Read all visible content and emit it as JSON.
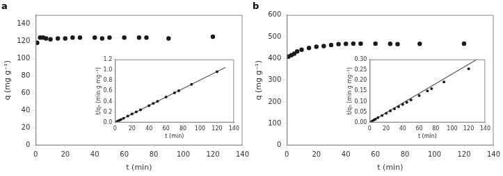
{
  "chart_data": [
    {
      "type": "scatter",
      "title": "a",
      "x": [
        1,
        3,
        5,
        7,
        10,
        15,
        20,
        25,
        30,
        40,
        45,
        50,
        60,
        70,
        75,
        90,
        120
      ],
      "values": [
        118,
        124,
        124,
        123,
        122,
        123,
        123,
        124,
        124,
        124,
        123,
        124,
        124,
        124,
        124,
        123,
        125
      ],
      "color": "#1a1a1a",
      "marker": "circle",
      "xlabel": "t (min)",
      "ylabel": "q (mg g⁻¹)",
      "xlim": [
        0,
        140
      ],
      "ylim": [
        0,
        150
      ],
      "xticks": [
        0,
        20,
        40,
        60,
        80,
        100,
        120,
        140
      ],
      "yticks": [
        0,
        20,
        40,
        60,
        80,
        100,
        120,
        140
      ],
      "grid": false
    },
    {
      "type": "scatter",
      "series": [
        {
          "type": "line",
          "color": "#555555",
          "line_style": "solid",
          "x": [
            0,
            130
          ],
          "values": [
            0,
            1.048
          ]
        },
        {
          "type": "scatter",
          "color": "#1a1a1a",
          "marker": "circle",
          "x": [
            1,
            3,
            5,
            7,
            10,
            15,
            20,
            25,
            30,
            40,
            45,
            50,
            60,
            70,
            75,
            90,
            120
          ],
          "values": [
            0.008,
            0.024,
            0.04,
            0.057,
            0.081,
            0.121,
            0.161,
            0.201,
            0.242,
            0.322,
            0.363,
            0.403,
            0.484,
            0.564,
            0.604,
            0.726,
            0.967
          ]
        }
      ],
      "xlabel": "t (min)",
      "ylabel": "t/qₙ (min g mg⁻¹)",
      "xlim": [
        0,
        140
      ],
      "ylim": [
        0,
        1.2
      ],
      "xticks": [
        0,
        20,
        40,
        60,
        80,
        100,
        120,
        140
      ],
      "yticks": [
        {
          "value": 0.0,
          "label": "0.0"
        },
        0.2,
        0.4,
        0.6,
        0.8,
        {
          "value": 1.0,
          "label": "1.0"
        },
        1.2
      ],
      "grid": false
    },
    {
      "type": "scatter",
      "title": "b",
      "x": [
        1,
        3,
        5,
        7,
        10,
        15,
        20,
        25,
        30,
        35,
        40,
        45,
        50,
        60,
        70,
        75,
        90,
        120
      ],
      "values": [
        408,
        415,
        422,
        432,
        440,
        448,
        454,
        457,
        462,
        466,
        467,
        468,
        468,
        468,
        467,
        466,
        467,
        468
      ],
      "color": "#1a1a1a",
      "marker": "circle",
      "xlabel": "t (min)",
      "ylabel": "q (mg g⁻¹)",
      "xlim": [
        0,
        140
      ],
      "ylim": [
        0,
        600
      ],
      "xticks": [
        0,
        20,
        40,
        60,
        80,
        100,
        120,
        140
      ],
      "yticks": [
        0,
        100,
        200,
        300,
        400,
        500,
        600
      ],
      "grid": false
    },
    {
      "type": "scatter",
      "series": [
        {
          "type": "line",
          "color": "#555555",
          "line_style": "solid",
          "x": [
            0,
            130
          ],
          "values": [
            0,
            0.3
          ]
        },
        {
          "type": "scatter",
          "color": "#1a1a1a",
          "marker": "circle",
          "x": [
            1,
            3,
            5,
            7,
            10,
            15,
            20,
            25,
            30,
            35,
            40,
            45,
            50,
            60,
            70,
            75,
            90,
            120
          ],
          "values": [
            0.002,
            0.007,
            0.012,
            0.016,
            0.023,
            0.033,
            0.044,
            0.055,
            0.065,
            0.075,
            0.086,
            0.096,
            0.107,
            0.128,
            0.15,
            0.161,
            0.193,
            0.256
          ]
        }
      ],
      "xlabel": "t (min)",
      "ylabel": "t/qₙ (min g mg⁻¹)",
      "xlim": [
        0,
        140
      ],
      "ylim": [
        0,
        0.3
      ],
      "xticks": [
        0,
        20,
        40,
        60,
        80,
        100,
        120,
        140
      ],
      "yticks": [
        {
          "value": 0,
          "label": "0.00"
        },
        0.05,
        {
          "value": 0.1,
          "label": "0.10"
        },
        0.15,
        {
          "value": 0.2,
          "label": "0.20"
        },
        0.25,
        {
          "value": 0.3,
          "label": "0.30"
        }
      ],
      "grid": false
    }
  ]
}
